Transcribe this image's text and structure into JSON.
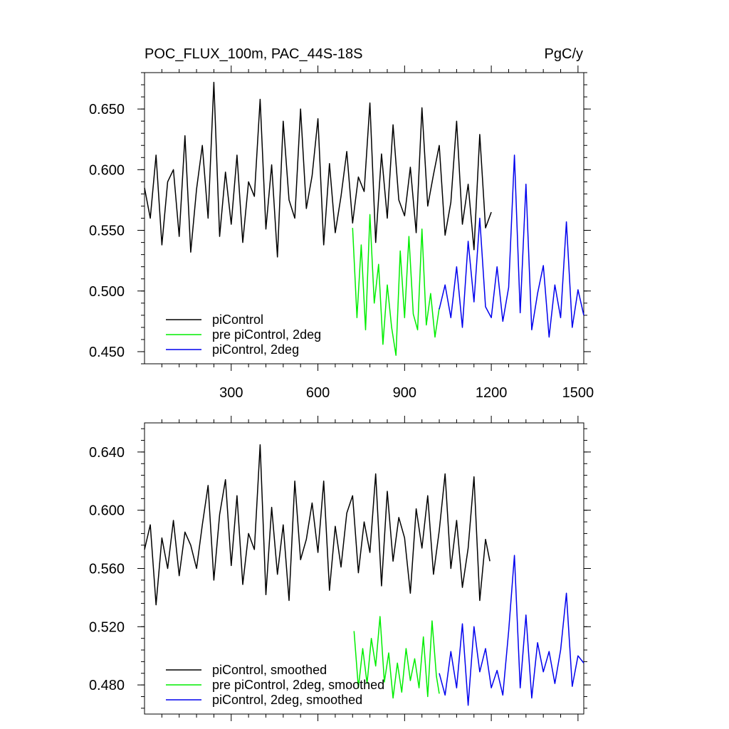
{
  "figure": {
    "title_left": "POC_FLUX_100m, PAC_44S-18S",
    "title_right": "PgC/y"
  },
  "chart_data": [
    {
      "type": "line",
      "xlim": [
        0,
        1520
      ],
      "ylim": [
        0.44,
        0.68
      ],
      "xticks": [
        300,
        600,
        900,
        1200,
        1500
      ],
      "xtick_labels": [
        "300",
        "600",
        "900",
        "1200",
        "1500"
      ],
      "yticks": [
        0.45,
        0.5,
        0.55,
        0.6,
        0.65
      ],
      "ytick_labels": [
        "0.450",
        "0.500",
        "0.550",
        "0.600",
        "0.650"
      ],
      "legend_position": "bottom-left",
      "series": [
        {
          "name": "piControl",
          "color": "#000000",
          "x": [
            0,
            20,
            40,
            60,
            80,
            100,
            120,
            140,
            160,
            180,
            200,
            220,
            240,
            260,
            280,
            300,
            320,
            340,
            360,
            380,
            400,
            420,
            440,
            460,
            480,
            500,
            520,
            540,
            560,
            580,
            600,
            620,
            640,
            660,
            680,
            700,
            720,
            740,
            760,
            780,
            800,
            820,
            840,
            860,
            880,
            900,
            920,
            940,
            960,
            980,
            1000,
            1020,
            1040,
            1060,
            1080,
            1100,
            1120,
            1140,
            1160,
            1180,
            1200
          ],
          "y": [
            0.585,
            0.56,
            0.612,
            0.538,
            0.59,
            0.6,
            0.545,
            0.628,
            0.532,
            0.584,
            0.62,
            0.56,
            0.672,
            0.545,
            0.598,
            0.555,
            0.612,
            0.54,
            0.59,
            0.578,
            0.658,
            0.551,
            0.604,
            0.528,
            0.64,
            0.575,
            0.56,
            0.65,
            0.568,
            0.595,
            0.642,
            0.538,
            0.605,
            0.548,
            0.578,
            0.615,
            0.556,
            0.594,
            0.582,
            0.655,
            0.54,
            0.613,
            0.56,
            0.637,
            0.575,
            0.562,
            0.602,
            0.548,
            0.651,
            0.57,
            0.596,
            0.62,
            0.546,
            0.573,
            0.64,
            0.555,
            0.588,
            0.534,
            0.629,
            0.552,
            0.565
          ]
        },
        {
          "name": "pre piControl, 2deg",
          "color": "#00ee00",
          "x": [
            720,
            735,
            750,
            765,
            780,
            795,
            810,
            825,
            840,
            855,
            870,
            885,
            900,
            915,
            930,
            945,
            960,
            975,
            990,
            1005,
            1020
          ],
          "y": [
            0.552,
            0.478,
            0.538,
            0.468,
            0.563,
            0.49,
            0.522,
            0.456,
            0.505,
            0.47,
            0.447,
            0.533,
            0.478,
            0.545,
            0.481,
            0.468,
            0.551,
            0.472,
            0.498,
            0.462,
            0.486
          ]
        },
        {
          "name": "piControl, 2deg",
          "color": "#0000ee",
          "x": [
            1020,
            1040,
            1060,
            1080,
            1100,
            1120,
            1140,
            1160,
            1180,
            1200,
            1220,
            1240,
            1260,
            1280,
            1300,
            1320,
            1340,
            1360,
            1380,
            1400,
            1420,
            1440,
            1460,
            1480,
            1500,
            1520
          ],
          "y": [
            0.485,
            0.505,
            0.478,
            0.52,
            0.47,
            0.541,
            0.491,
            0.56,
            0.487,
            0.478,
            0.52,
            0.475,
            0.503,
            0.612,
            0.482,
            0.588,
            0.468,
            0.498,
            0.521,
            0.462,
            0.505,
            0.478,
            0.557,
            0.47,
            0.501,
            0.48
          ]
        }
      ]
    },
    {
      "type": "line",
      "xlim": [
        0,
        1520
      ],
      "ylim": [
        0.46,
        0.66
      ],
      "xticks": [
        300,
        600,
        900,
        1200,
        1500
      ],
      "yticks": [
        0.48,
        0.52,
        0.56,
        0.6,
        0.64
      ],
      "ytick_labels": [
        "0.480",
        "0.520",
        "0.560",
        "0.600",
        "0.640"
      ],
      "legend_position": "bottom-left",
      "series": [
        {
          "name": "piControl, smoothed",
          "color": "#000000",
          "x": [
            0,
            20,
            40,
            60,
            80,
            100,
            120,
            140,
            160,
            180,
            200,
            220,
            240,
            260,
            280,
            300,
            320,
            340,
            360,
            380,
            400,
            420,
            440,
            460,
            480,
            500,
            520,
            540,
            560,
            580,
            600,
            620,
            640,
            660,
            680,
            700,
            720,
            740,
            760,
            780,
            800,
            820,
            840,
            860,
            880,
            900,
            920,
            940,
            960,
            980,
            1000,
            1020,
            1040,
            1060,
            1080,
            1100,
            1120,
            1140,
            1160,
            1180,
            1195
          ],
          "y": [
            0.573,
            0.59,
            0.535,
            0.581,
            0.56,
            0.593,
            0.555,
            0.585,
            0.576,
            0.56,
            0.59,
            0.617,
            0.552,
            0.597,
            0.621,
            0.562,
            0.61,
            0.549,
            0.584,
            0.573,
            0.645,
            0.542,
            0.602,
            0.556,
            0.59,
            0.538,
            0.62,
            0.566,
            0.58,
            0.605,
            0.571,
            0.62,
            0.545,
            0.589,
            0.561,
            0.598,
            0.61,
            0.557,
            0.592,
            0.571,
            0.625,
            0.548,
            0.613,
            0.565,
            0.595,
            0.581,
            0.543,
            0.601,
            0.574,
            0.61,
            0.556,
            0.586,
            0.625,
            0.56,
            0.593,
            0.547,
            0.574,
            0.623,
            0.538,
            0.58,
            0.565
          ]
        },
        {
          "name": "pre piControl, 2deg, smoothed",
          "color": "#00ee00",
          "x": [
            725,
            740,
            755,
            770,
            785,
            800,
            815,
            830,
            845,
            860,
            875,
            890,
            905,
            920,
            935,
            950,
            965,
            980,
            995,
            1010,
            1020
          ],
          "y": [
            0.517,
            0.478,
            0.505,
            0.481,
            0.512,
            0.493,
            0.527,
            0.482,
            0.502,
            0.471,
            0.495,
            0.475,
            0.505,
            0.483,
            0.498,
            0.478,
            0.513,
            0.472,
            0.524,
            0.486,
            0.474
          ]
        },
        {
          "name": "piControl, 2deg, smoothed",
          "color": "#0000ee",
          "x": [
            1020,
            1040,
            1060,
            1080,
            1100,
            1120,
            1140,
            1160,
            1180,
            1200,
            1220,
            1240,
            1260,
            1280,
            1300,
            1320,
            1340,
            1360,
            1380,
            1400,
            1420,
            1440,
            1460,
            1480,
            1500,
            1520
          ],
          "y": [
            0.488,
            0.473,
            0.503,
            0.478,
            0.522,
            0.466,
            0.52,
            0.489,
            0.505,
            0.478,
            0.49,
            0.473,
            0.517,
            0.569,
            0.478,
            0.528,
            0.471,
            0.509,
            0.489,
            0.503,
            0.481,
            0.504,
            0.543,
            0.479,
            0.5,
            0.495
          ]
        }
      ]
    }
  ]
}
